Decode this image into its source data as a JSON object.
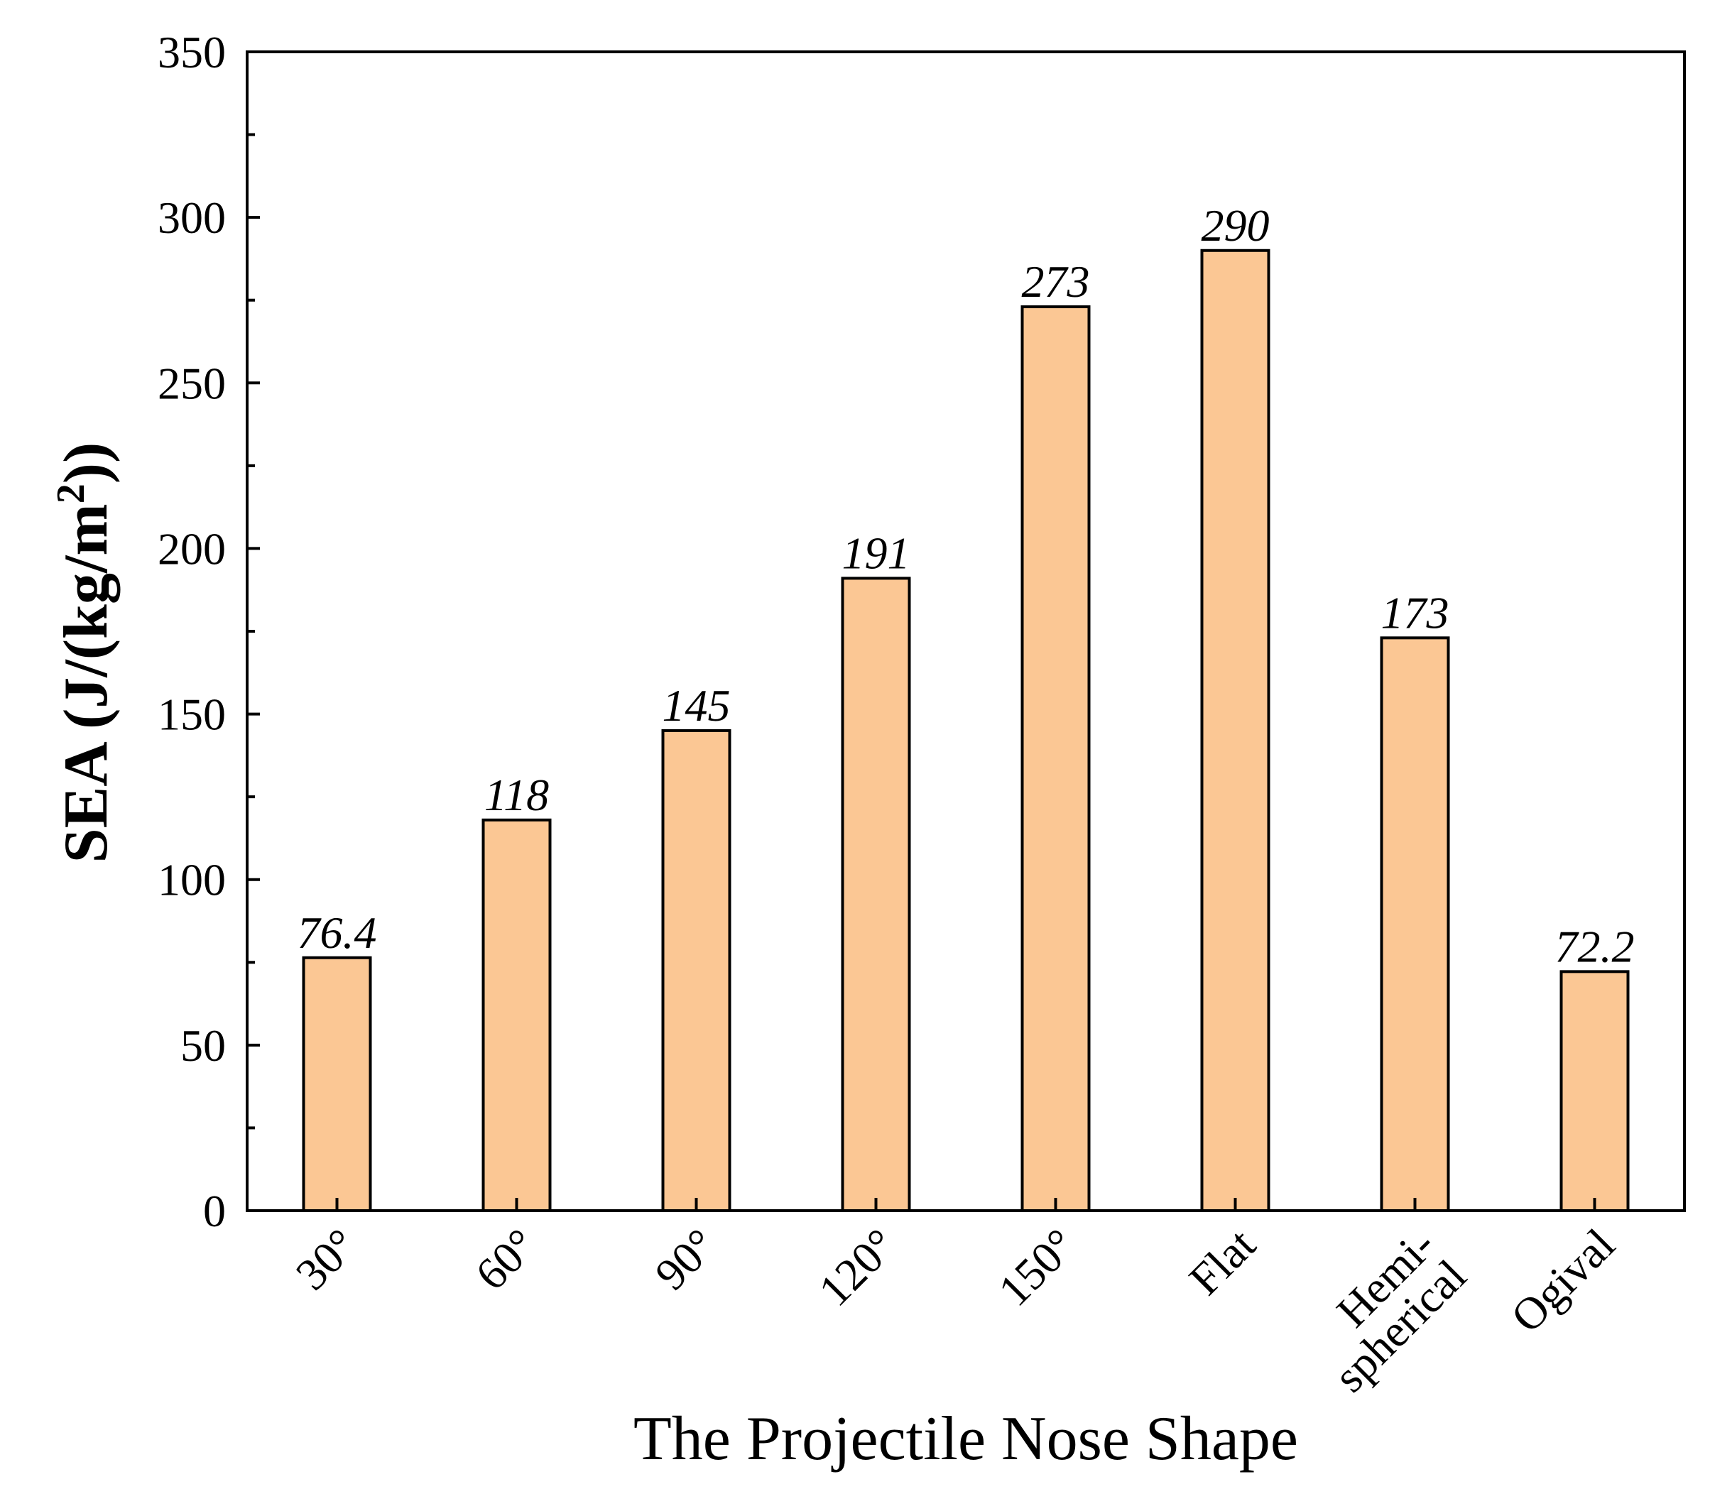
{
  "chart_data": {
    "type": "bar",
    "title": "",
    "xlabel": "The Projectile Nose Shape",
    "ylabel": "SEA (J/(kg/m2))",
    "ylabel_parts": {
      "main": "SEA (J/(kg/m",
      "sup": "2",
      "tail": "))"
    },
    "categories": [
      "30°",
      "60°",
      "90°",
      "120°",
      "150°",
      "Flat",
      "Hemi-\nspherical",
      "Ogival"
    ],
    "values": [
      76.4,
      118,
      145,
      191,
      273,
      290,
      173,
      72.2
    ],
    "data_labels": [
      "76.4",
      "118",
      "145",
      "191",
      "273",
      "290",
      "173",
      "72.2"
    ],
    "ylim": [
      0,
      350
    ],
    "yticks": [
      0,
      50,
      100,
      150,
      200,
      250,
      300,
      350
    ],
    "grid": false,
    "bar_color": "#FBC794",
    "bar_edge_color": "#000000"
  }
}
